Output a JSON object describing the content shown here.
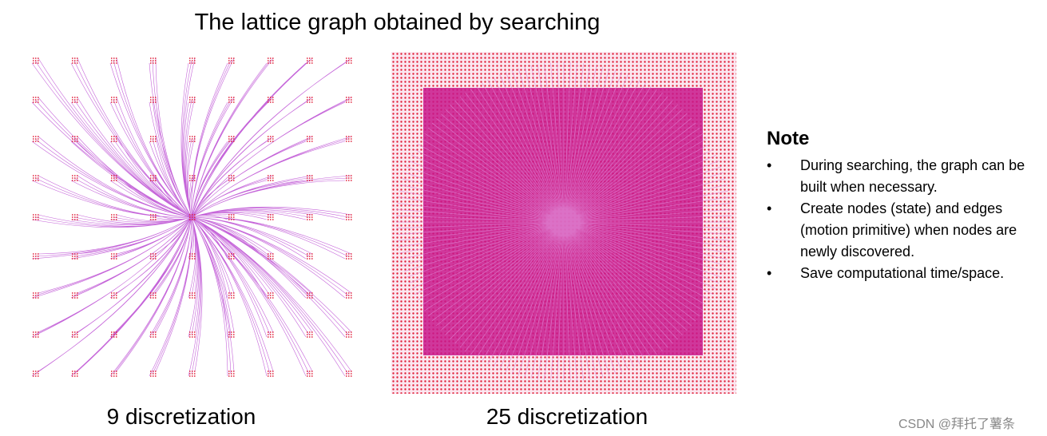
{
  "title": "The lattice graph obtained by searching",
  "figures": [
    {
      "caption": "9 discretization"
    },
    {
      "caption": "25 discretization"
    }
  ],
  "note": {
    "heading": "Note",
    "bullets": [
      "During searching, the graph can be built when necessary.",
      "Create nodes (state) and edges (motion primitive) when nodes are newly discovered.",
      "Save computational time/space."
    ]
  },
  "watermark": "CSDN @拜托了薯条"
}
